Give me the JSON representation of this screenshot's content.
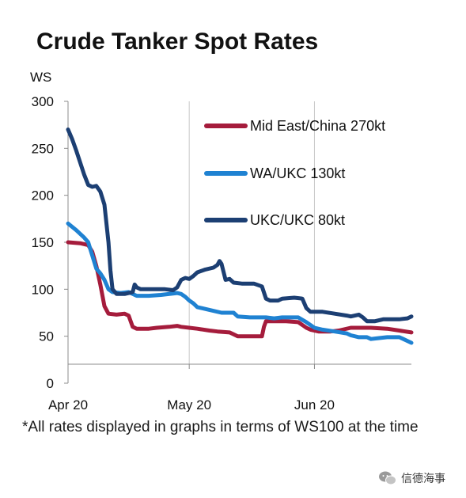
{
  "chart_data": {
    "type": "line",
    "title": "Crude Tanker Spot Rates",
    "ylabel": "WS",
    "ylim": [
      0,
      300
    ],
    "yticks": [
      0,
      50,
      100,
      150,
      200,
      250,
      300
    ],
    "xticks": [
      {
        "label": "Apr 20",
        "day": 0
      },
      {
        "label": "May 20",
        "day": 30
      },
      {
        "label": "Jun 20",
        "day": 61
      }
    ],
    "xlim": [
      0,
      85
    ],
    "grid": "vertical lines at month ticks",
    "legend": "top-right",
    "series": [
      {
        "name": "Mid East/China 270kt",
        "color": "#a51c3c",
        "points": [
          [
            0,
            150
          ],
          [
            3,
            149
          ],
          [
            5,
            147
          ],
          [
            6,
            140
          ],
          [
            7,
            125
          ],
          [
            8,
            105
          ],
          [
            9,
            82
          ],
          [
            10,
            74
          ],
          [
            12,
            73
          ],
          [
            14,
            74
          ],
          [
            15,
            72
          ],
          [
            16,
            60
          ],
          [
            17,
            58
          ],
          [
            20,
            58
          ],
          [
            22,
            59
          ],
          [
            25,
            60
          ],
          [
            27,
            61
          ],
          [
            28,
            60
          ],
          [
            30,
            59
          ],
          [
            32,
            58
          ],
          [
            35,
            56
          ],
          [
            37,
            55
          ],
          [
            40,
            54
          ],
          [
            41,
            52
          ],
          [
            42,
            50
          ],
          [
            45,
            50
          ],
          [
            48,
            50
          ],
          [
            48.5,
            60
          ],
          [
            49,
            66
          ],
          [
            51,
            66
          ],
          [
            54,
            66
          ],
          [
            57,
            65
          ],
          [
            58,
            62
          ],
          [
            59,
            59
          ],
          [
            60,
            57
          ],
          [
            62,
            55
          ],
          [
            65,
            55
          ],
          [
            67,
            56
          ],
          [
            70,
            59
          ],
          [
            72,
            59
          ],
          [
            75,
            59
          ],
          [
            79,
            58
          ],
          [
            82,
            56
          ],
          [
            85,
            54
          ]
        ]
      },
      {
        "name": "WA/UKC 130kt",
        "color": "#1f82d2",
        "points": [
          [
            0,
            170
          ],
          [
            2,
            163
          ],
          [
            4,
            155
          ],
          [
            5,
            150
          ],
          [
            6,
            136
          ],
          [
            7,
            122
          ],
          [
            8,
            117
          ],
          [
            9,
            110
          ],
          [
            10,
            100
          ],
          [
            11,
            97
          ],
          [
            13,
            96
          ],
          [
            15,
            97
          ],
          [
            16,
            95
          ],
          [
            17,
            93
          ],
          [
            20,
            93
          ],
          [
            23,
            94
          ],
          [
            27,
            96
          ],
          [
            28,
            95
          ],
          [
            29,
            92
          ],
          [
            30,
            88
          ],
          [
            31,
            85
          ],
          [
            32,
            81
          ],
          [
            35,
            78
          ],
          [
            38,
            75
          ],
          [
            41,
            75
          ],
          [
            42,
            71
          ],
          [
            45,
            70
          ],
          [
            49,
            70
          ],
          [
            51,
            69
          ],
          [
            53,
            70
          ],
          [
            57,
            70
          ],
          [
            59,
            65
          ],
          [
            61,
            59
          ],
          [
            63,
            57
          ],
          [
            66,
            55
          ],
          [
            69,
            53
          ],
          [
            70,
            51
          ],
          [
            72,
            49
          ],
          [
            74,
            49
          ],
          [
            75,
            47
          ],
          [
            77,
            48
          ],
          [
            79,
            49
          ],
          [
            82,
            49
          ],
          [
            83,
            47
          ],
          [
            84,
            45
          ],
          [
            85,
            43
          ]
        ]
      },
      {
        "name": "UKC/UKC 80kt",
        "color": "#1c3f73",
        "points": [
          [
            0,
            270
          ],
          [
            1,
            260
          ],
          [
            2,
            248
          ],
          [
            3,
            235
          ],
          [
            4,
            222
          ],
          [
            5,
            211
          ],
          [
            6,
            209
          ],
          [
            7,
            210
          ],
          [
            8,
            204
          ],
          [
            9,
            190
          ],
          [
            10,
            150
          ],
          [
            10.5,
            120
          ],
          [
            11,
            100
          ],
          [
            12,
            95
          ],
          [
            14,
            95
          ],
          [
            16,
            97
          ],
          [
            16.5,
            105
          ],
          [
            17,
            102
          ],
          [
            18,
            100
          ],
          [
            21,
            100
          ],
          [
            24,
            100
          ],
          [
            26,
            99
          ],
          [
            27,
            102
          ],
          [
            28,
            110
          ],
          [
            29,
            112
          ],
          [
            30,
            111
          ],
          [
            31,
            114
          ],
          [
            32,
            118
          ],
          [
            34,
            121
          ],
          [
            36,
            123
          ],
          [
            37,
            126
          ],
          [
            37.5,
            130
          ],
          [
            38,
            127
          ],
          [
            39,
            110
          ],
          [
            40,
            111
          ],
          [
            41,
            107
          ],
          [
            43,
            106
          ],
          [
            46,
            106
          ],
          [
            48,
            103
          ],
          [
            49,
            90
          ],
          [
            50,
            88
          ],
          [
            52,
            88
          ],
          [
            53,
            90
          ],
          [
            56,
            91
          ],
          [
            58,
            90
          ],
          [
            59,
            80
          ],
          [
            60,
            76
          ],
          [
            63,
            76
          ],
          [
            66,
            74
          ],
          [
            69,
            72
          ],
          [
            70,
            71
          ],
          [
            72,
            73
          ],
          [
            73,
            70
          ],
          [
            74,
            66
          ],
          [
            76,
            66
          ],
          [
            78,
            68
          ],
          [
            82,
            68
          ],
          [
            84,
            69
          ],
          [
            85,
            71
          ]
        ]
      }
    ]
  },
  "footnote": "*All rates displayed in graphs in terms of WS100 at the time",
  "watermark": "信德海事"
}
